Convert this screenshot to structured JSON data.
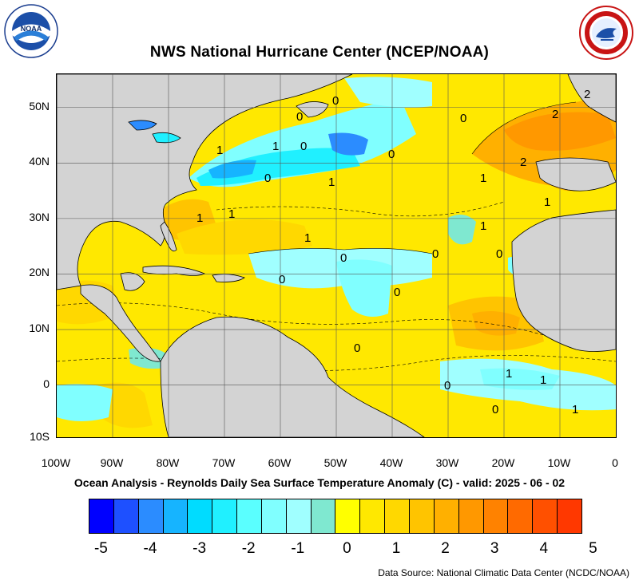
{
  "header": {
    "title": "NWS National Hurricane Center (NCEP/NOAA)",
    "left_logo_icon": "noaa-logo-icon",
    "right_logo_icon": "nws-logo-icon"
  },
  "map": {
    "subtitle": "Ocean Analysis - Reynolds Daily Sea Surface Temperature Anomaly (C) - valid: 2025 - 06 - 02",
    "lat_labels": [
      "50N",
      "40N",
      "30N",
      "20N",
      "10N",
      "0",
      "10S"
    ],
    "lon_labels": [
      "100W",
      "90W",
      "80W",
      "70W",
      "60W",
      "50W",
      "40W",
      "30W",
      "20W",
      "10W",
      "0"
    ],
    "land_color": "#d3d3d3",
    "contour_labels": [
      "0",
      "0",
      "0",
      "0",
      "1",
      "1",
      "1",
      "2",
      "2",
      "2",
      "1",
      "1",
      "1",
      "0",
      "0",
      "0",
      "0",
      "0",
      "0",
      "1",
      "1",
      "1",
      "0",
      "0",
      "0",
      "0",
      "1",
      "1",
      "1"
    ]
  },
  "colorbar": {
    "colors": [
      "#0000ff",
      "#1e50ff",
      "#2b8cff",
      "#16b4ff",
      "#00dcff",
      "#20f0ff",
      "#5affff",
      "#80ffff",
      "#a0ffff",
      "#7fe8d0",
      "#ffff00",
      "#ffe800",
      "#ffd800",
      "#ffc400",
      "#ffb000",
      "#ff9800",
      "#ff8200",
      "#ff6a00",
      "#ff5000",
      "#ff3800"
    ],
    "labels": [
      "-5",
      "-4",
      "-3",
      "-2",
      "-1",
      "0",
      "1",
      "2",
      "3",
      "4",
      "5"
    ]
  },
  "footer": {
    "source": "Data Source: National Climatic Data Center (NCDC/NOAA)"
  }
}
